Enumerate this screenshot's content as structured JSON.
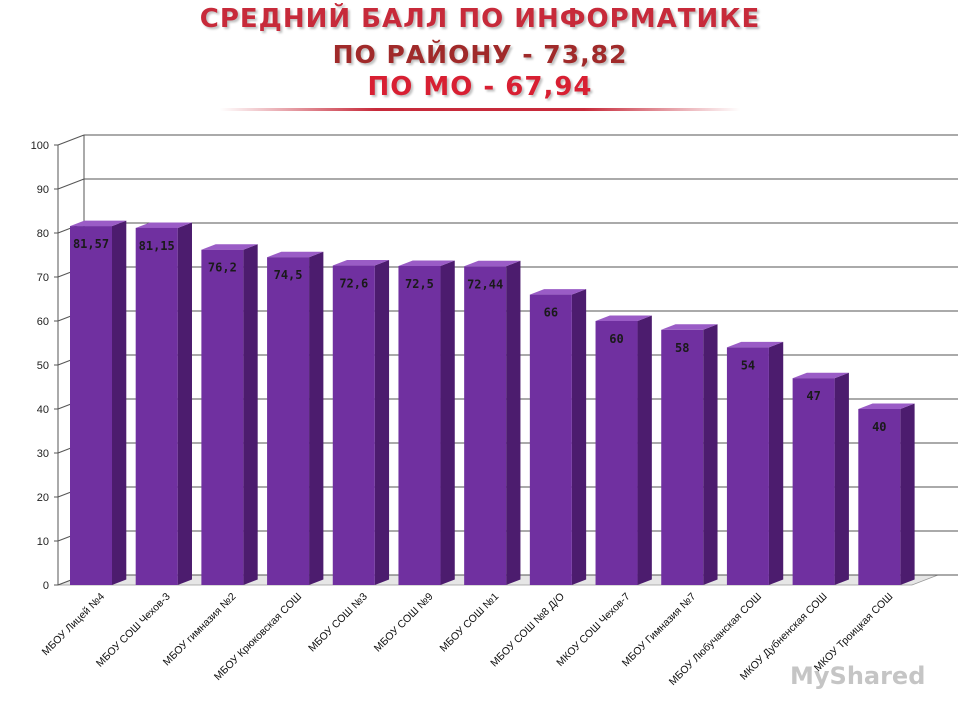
{
  "title": {
    "line1": "СРЕДНИЙ БАЛЛ ПО ИНФОРМАТИКЕ",
    "line2": "ПО РАЙОНУ - 73,82",
    "line3": "ПО МО - 67,94"
  },
  "watermark": "MyShared",
  "colors": {
    "bar_front": "#7030a0",
    "bar_side": "#4c1c6e",
    "bar_top": "#9a5cc6",
    "grid": "#555555",
    "title_red": "#c72a3a"
  },
  "chart_data": {
    "type": "bar",
    "style": "3d",
    "categories": [
      "МБОУ Лицей №4",
      "МБОУ СОШ Чехов-3",
      "МБОУ гимназия №2",
      "МБОУ Крюковская СОШ",
      "МБОУ СОШ №3",
      "МБОУ СОШ №9",
      "МБОУ СОШ №1",
      "МБОУ СОШ №8 Д/О",
      "МКОУ СОШ Чехов-7",
      "МБОУ Гимназия №7",
      "МБОУ Любучанская СОШ",
      "МКОУ Дубненская СОШ",
      "МКОУ Троицкая СОШ"
    ],
    "values": [
      81.57,
      81.15,
      76.2,
      74.5,
      72.6,
      72.5,
      72.44,
      66,
      60,
      58,
      54,
      47,
      40
    ],
    "data_labels": [
      "81,57",
      "81,15",
      "76,2",
      "74,5",
      "72,6",
      "72,5",
      "72,44",
      "66",
      "60",
      "58",
      "54",
      "47",
      "40"
    ],
    "yticks": [
      "0",
      "10",
      "20",
      "30",
      "40",
      "50",
      "60",
      "70",
      "80",
      "90",
      "100"
    ],
    "ylim": [
      0,
      100
    ],
    "grid": true,
    "legend": "none"
  }
}
